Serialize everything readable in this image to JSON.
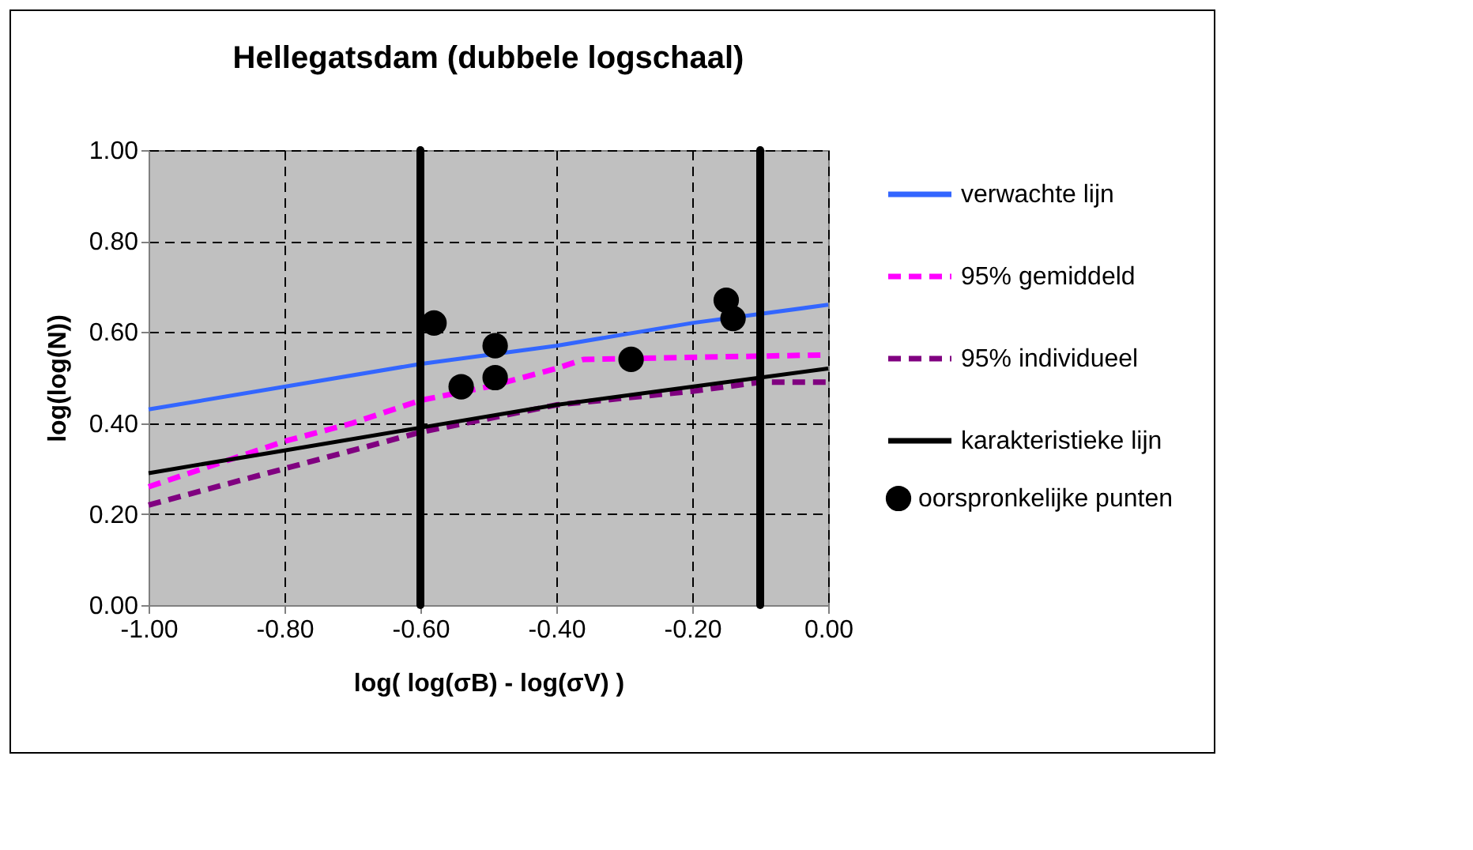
{
  "chart_data": {
    "type": "line",
    "title": "Hellegatsdam (dubbele logschaal)",
    "xlabel": "log( log(σB) - log(σV) )",
    "ylabel": "log(log(N))",
    "xlim": [
      -1,
      0
    ],
    "xticks": [
      {
        "value": -1,
        "label": "-1.00"
      },
      {
        "value": -0.8,
        "label": "-0.80"
      },
      {
        "value": -0.6,
        "label": "-0.60"
      },
      {
        "value": -0.4,
        "label": "-0.40"
      },
      {
        "value": -0.2,
        "label": "-0.20"
      },
      {
        "value": 0,
        "label": "0.00"
      }
    ],
    "ylim": [
      0,
      1
    ],
    "yticks": [
      {
        "value": 0,
        "label": "0.00"
      },
      {
        "value": 0.2,
        "label": "0.20"
      },
      {
        "value": 0.4,
        "label": "0.40"
      },
      {
        "value": 0.6,
        "label": "0.60"
      },
      {
        "value": 0.8,
        "label": "0.80"
      },
      {
        "value": 1,
        "label": "1.00"
      }
    ],
    "grid": true,
    "legend": "right",
    "series": [
      {
        "name": "verwachte lijn",
        "color": "#3366ff",
        "line_style": "solid",
        "x": [
          -1,
          -0.8,
          -0.6,
          -0.4,
          -0.2,
          0
        ],
        "values": [
          0.43,
          0.48,
          0.53,
          0.57,
          0.62,
          0.66
        ]
      },
      {
        "name": "95% gemiddeld",
        "color": "#ff00ff",
        "line_style": "dashed",
        "x": [
          -1,
          -0.8,
          -0.7,
          -0.6,
          -0.5,
          -0.4,
          -0.36,
          0
        ],
        "values": [
          0.26,
          0.36,
          0.4,
          0.45,
          0.48,
          0.52,
          0.54,
          0.55
        ]
      },
      {
        "name": "95% individueel",
        "color": "#800080",
        "line_style": "dashed",
        "x": [
          -1,
          -0.8,
          -0.6,
          -0.4,
          -0.2,
          -0.1,
          0
        ],
        "values": [
          0.22,
          0.3,
          0.38,
          0.44,
          0.47,
          0.49,
          0.49
        ]
      },
      {
        "name": "oorspronkelijke punten",
        "type": "scatter",
        "color": "#000000",
        "marker": "circle",
        "x": [
          -0.58,
          -0.54,
          -0.49,
          -0.49,
          -0.29,
          -0.15,
          -0.14
        ],
        "values": [
          0.62,
          0.48,
          0.57,
          0.5,
          0.54,
          0.67,
          0.63
        ]
      },
      {
        "name": "karakteristieke lijn",
        "color": "#000000",
        "line_style": "solid",
        "x": [
          -1,
          -0.8,
          -0.6,
          -0.4,
          -0.2,
          0
        ],
        "values": [
          0.29,
          0.34,
          0.39,
          0.44,
          0.48,
          0.52
        ]
      }
    ],
    "ref_lines": [
      {
        "axis": "x",
        "value": -0.6,
        "color": "#000000"
      },
      {
        "axis": "x",
        "value": -0.1,
        "color": "#000000"
      }
    ]
  }
}
